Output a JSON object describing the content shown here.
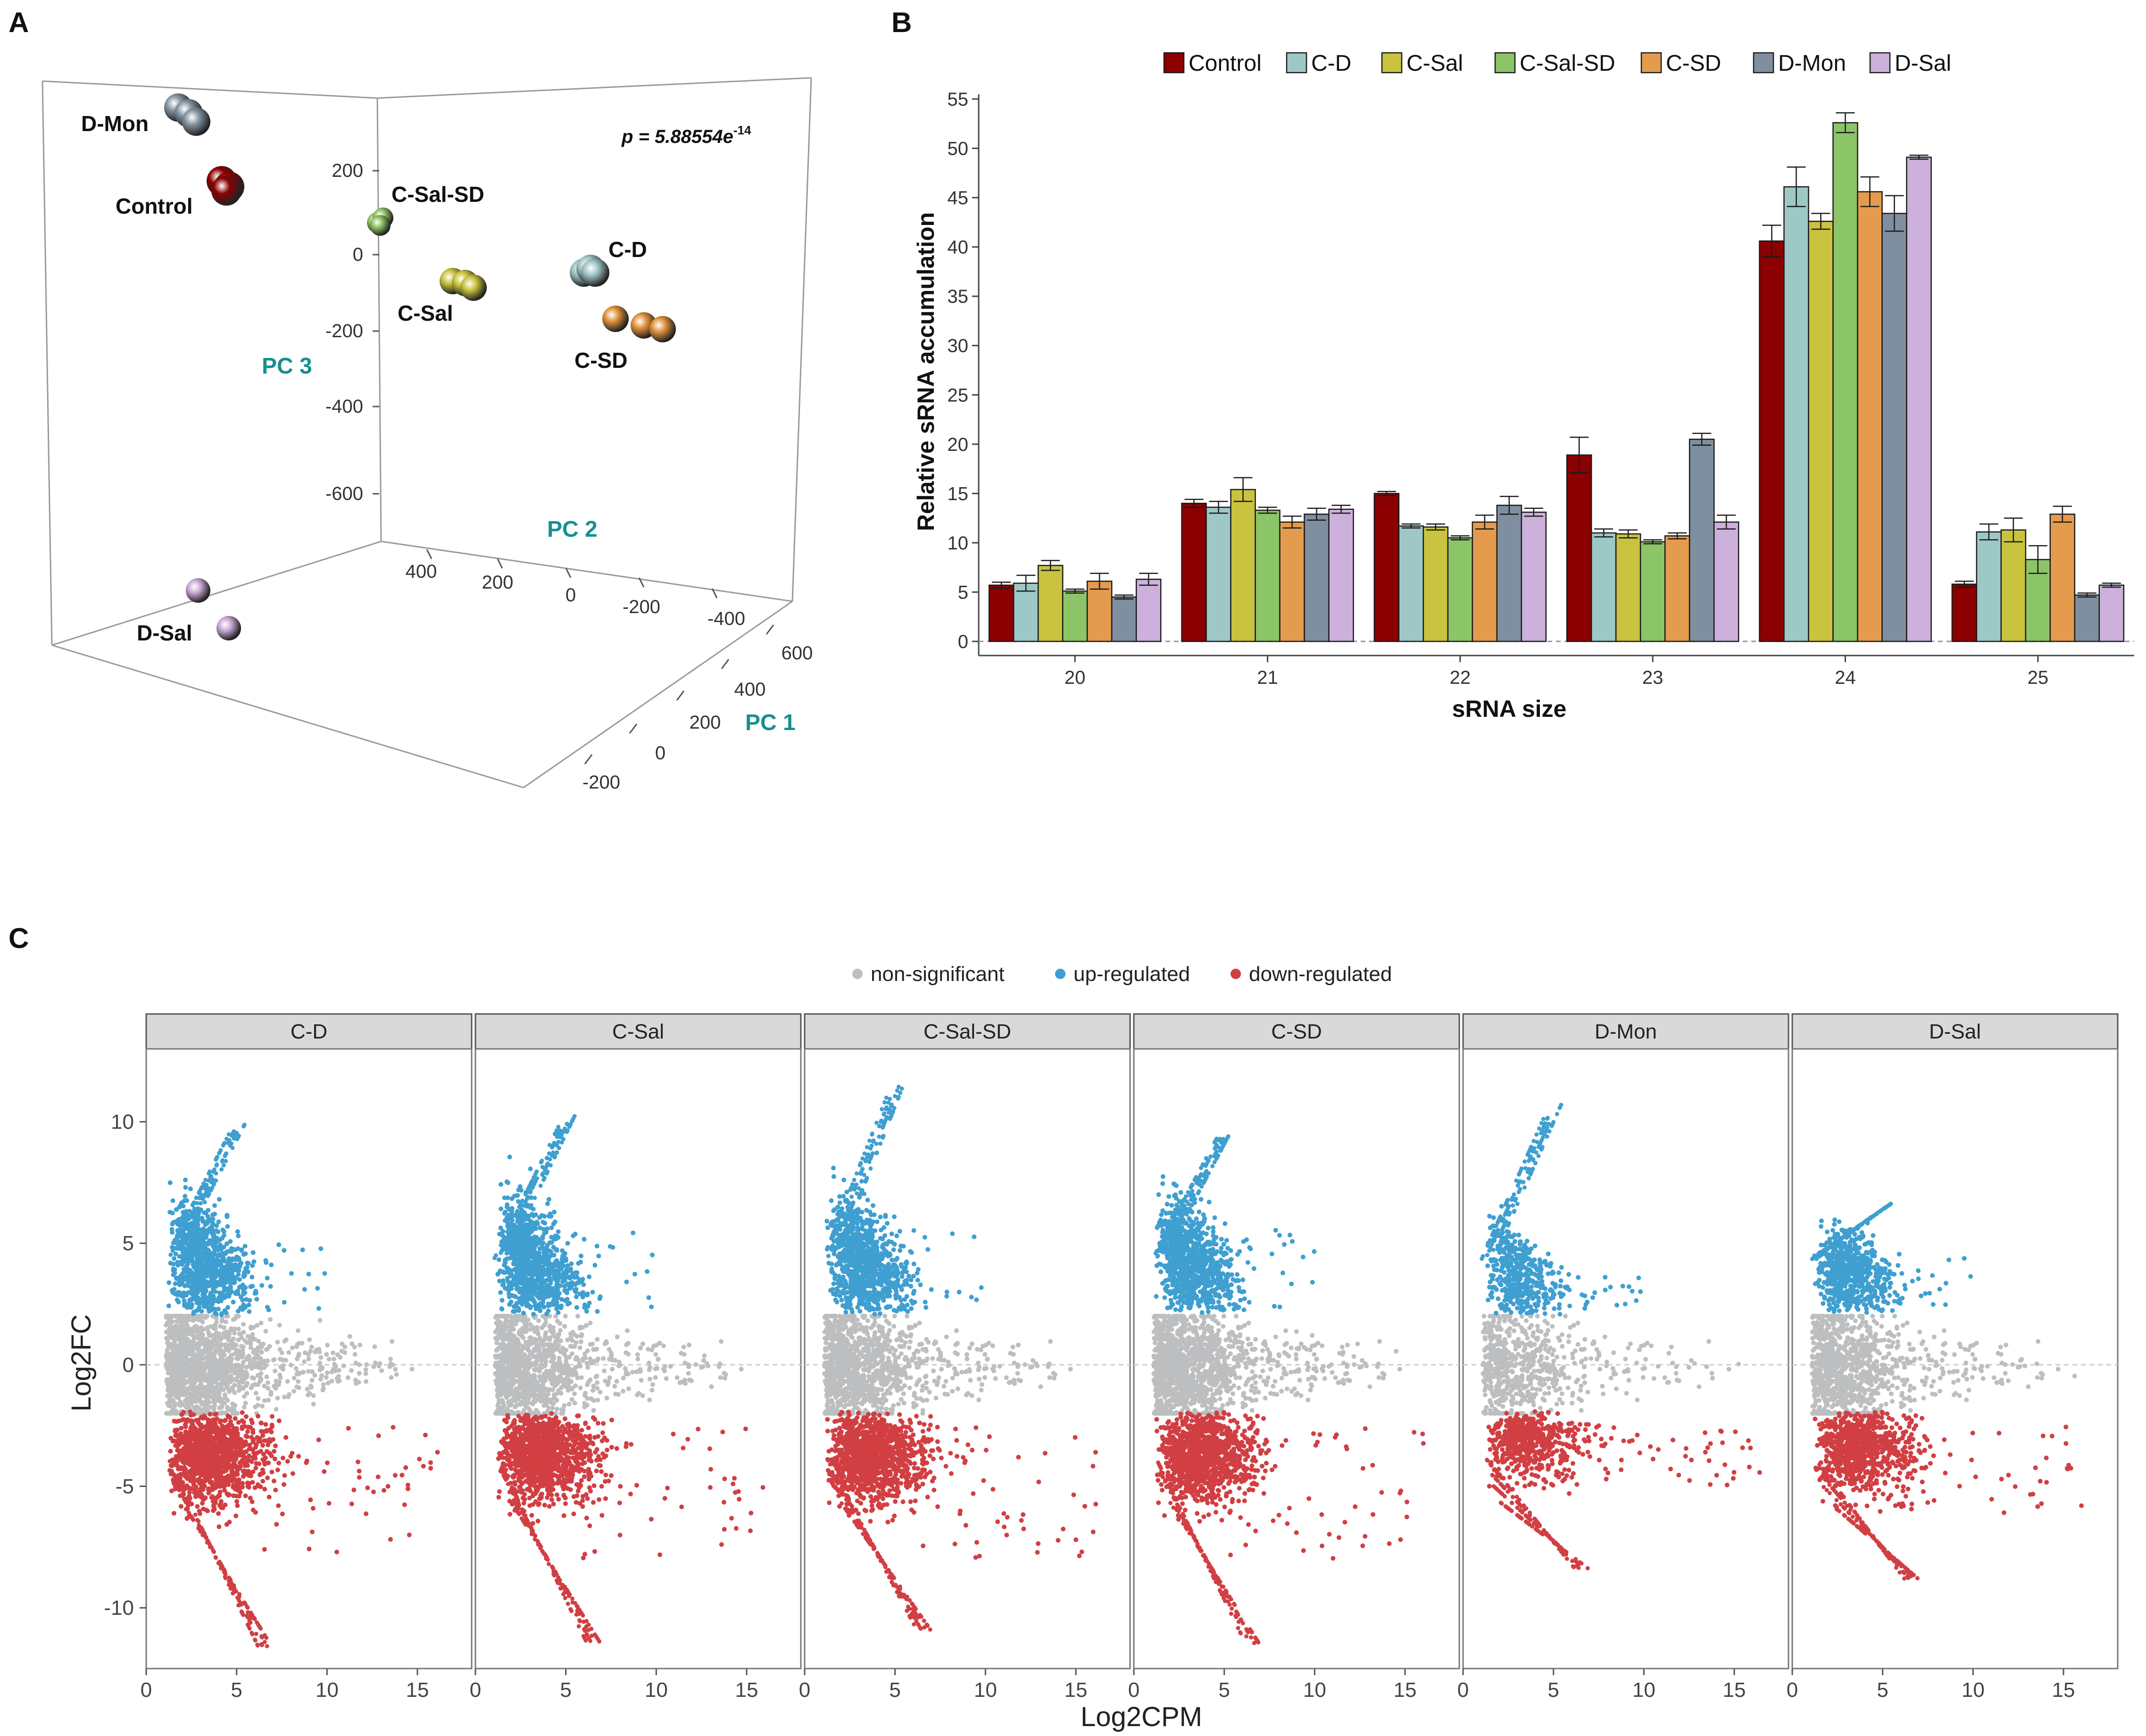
{
  "panels": {
    "a": {
      "letter": "A"
    },
    "b": {
      "letter": "B"
    },
    "c": {
      "letter": "C"
    }
  },
  "pca": {
    "p_label": "p = 5.88554e",
    "p_exponent": "-14",
    "axes": {
      "pc1": "PC 1",
      "pc2": "PC 2",
      "pc3": "PC 3"
    },
    "pc3_ticks": [
      "200",
      "0",
      "-200",
      "-400",
      "-600"
    ],
    "pc2_ticks": [
      "400",
      "200",
      "0",
      "-200",
      "-400"
    ],
    "pc1_ticks": [
      "600",
      "400",
      "200",
      "0",
      "-200"
    ],
    "groups": [
      {
        "name": "D-Mon",
        "color": "#8393a1"
      },
      {
        "name": "Control",
        "color": "#8b0000"
      },
      {
        "name": "C-Sal-SD",
        "color": "#8cc063"
      },
      {
        "name": "C-Sal",
        "color": "#c8c03a"
      },
      {
        "name": "C-D",
        "color": "#9dc3c3"
      },
      {
        "name": "C-SD",
        "color": "#e0913a"
      },
      {
        "name": "D-Sal",
        "color": "#c8a8d6"
      }
    ]
  },
  "chart_data": [
    {
      "type": "bar",
      "title": "",
      "xlabel": "sRNA size",
      "ylabel": "Relative sRNA accumulation",
      "ylim": [
        0,
        55
      ],
      "yticks": [
        0,
        5,
        10,
        15,
        20,
        25,
        30,
        35,
        40,
        45,
        50,
        55
      ],
      "categories": [
        "20",
        "21",
        "22",
        "23",
        "24",
        "25"
      ],
      "legend_position": "top",
      "series": [
        {
          "name": "Control",
          "color": "#8b0000",
          "values": [
            5.7,
            14.0,
            15.0,
            18.9,
            40.6,
            5.8
          ],
          "errors": [
            0.3,
            0.4,
            0.2,
            1.8,
            1.6,
            0.3
          ]
        },
        {
          "name": "C-D",
          "color": "#9ec8c6",
          "values": [
            5.9,
            13.6,
            11.7,
            11.0,
            46.1,
            11.1
          ],
          "errors": [
            0.8,
            0.6,
            0.2,
            0.4,
            2.0,
            0.8
          ]
        },
        {
          "name": "C-Sal",
          "color": "#c9c33f",
          "values": [
            7.7,
            15.4,
            11.6,
            10.9,
            42.6,
            11.3
          ],
          "errors": [
            0.5,
            1.2,
            0.3,
            0.4,
            0.8,
            1.2
          ]
        },
        {
          "name": "C-Sal-SD",
          "color": "#8cc468",
          "values": [
            5.1,
            13.3,
            10.5,
            10.1,
            52.6,
            8.3
          ],
          "errors": [
            0.2,
            0.3,
            0.2,
            0.2,
            1.0,
            1.4
          ]
        },
        {
          "name": "C-SD",
          "color": "#e59b4d",
          "values": [
            6.1,
            12.1,
            12.1,
            10.7,
            45.6,
            12.9
          ],
          "errors": [
            0.8,
            0.6,
            0.7,
            0.3,
            1.5,
            0.8
          ]
        },
        {
          "name": "D-Mon",
          "color": "#7f8f9f",
          "values": [
            4.5,
            12.9,
            13.8,
            20.5,
            43.4,
            4.7
          ],
          "errors": [
            0.2,
            0.6,
            0.9,
            0.6,
            1.8,
            0.2
          ]
        },
        {
          "name": "D-Sal",
          "color": "#cdb0dc",
          "values": [
            6.3,
            13.4,
            13.1,
            12.1,
            49.1,
            5.7
          ],
          "errors": [
            0.6,
            0.4,
            0.4,
            0.7,
            0.2,
            0.2
          ]
        }
      ]
    },
    {
      "type": "scatter",
      "title": "",
      "xlabel": "Log2CPM",
      "ylabel": "Log2FC",
      "xlim": [
        0,
        18
      ],
      "ylim": [
        -12.5,
        13
      ],
      "xticks": [
        0,
        5,
        10,
        15
      ],
      "yticks": [
        10,
        5,
        0,
        -5,
        -10
      ],
      "legend_position": "top",
      "legend": [
        {
          "name": "non-significant",
          "color": "#bcbec0"
        },
        {
          "name": "up-regulated",
          "color": "#3f9fd0"
        },
        {
          "name": "down-regulated",
          "color": "#d13f43"
        }
      ],
      "facets": [
        {
          "name": "C-D",
          "up_max": 10.3,
          "down_min": -11.6,
          "xmax": 17.2,
          "density": 1.0
        },
        {
          "name": "C-Sal",
          "up_max": 10.6,
          "down_min": -11.5,
          "xmax": 17.0,
          "density": 1.0
        },
        {
          "name": "C-Sal-SD",
          "up_max": 12.0,
          "down_min": -10.9,
          "xmax": 17.2,
          "density": 1.0
        },
        {
          "name": "C-SD",
          "up_max": 10.1,
          "down_min": -11.5,
          "xmax": 17.2,
          "density": 1.0
        },
        {
          "name": "D-Mon",
          "up_max": 11.2,
          "down_min": -8.4,
          "xmax": 17.5,
          "density": 0.45
        },
        {
          "name": "D-Sal",
          "up_max": 6.8,
          "down_min": -8.8,
          "xmax": 17.0,
          "density": 0.7
        }
      ]
    }
  ]
}
